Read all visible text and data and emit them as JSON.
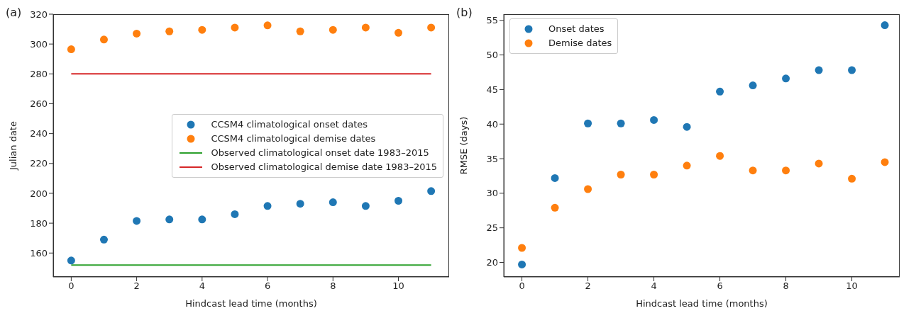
{
  "chart_data": [
    {
      "type": "scatter",
      "title": "(a)",
      "xlabel": "Hindcast lead time (months)",
      "ylabel": "Julian date",
      "xlim": [
        -0.55,
        11.55
      ],
      "xticks": [
        0,
        2,
        4,
        6,
        8,
        10
      ],
      "ylim": [
        144,
        320
      ],
      "yticks": [
        160,
        180,
        200,
        220,
        240,
        260,
        280,
        300,
        320
      ],
      "legend": "center right",
      "series": [
        {
          "name": "CCSM4 climatological onset dates",
          "marker": "circle",
          "color": "#1f77b4",
          "x": [
            0,
            1,
            2,
            3,
            4,
            5,
            6,
            7,
            8,
            9,
            10,
            11
          ],
          "values": [
            155,
            169,
            181.5,
            182.5,
            182.5,
            186,
            191.5,
            193,
            194,
            191.5,
            195,
            201.5
          ]
        },
        {
          "name": "CCSM4 climatological demise dates",
          "marker": "circle",
          "color": "#ff7f0e",
          "x": [
            0,
            1,
            2,
            3,
            4,
            5,
            6,
            7,
            8,
            9,
            10,
            11
          ],
          "values": [
            296.5,
            303,
            307,
            308.5,
            309.5,
            311,
            312.5,
            308.5,
            309.5,
            311,
            307.5,
            311
          ]
        },
        {
          "name": "Observed climatological onset date 1983–2015",
          "type": "line",
          "color": "#2ca02c",
          "x": [
            0,
            11
          ],
          "values": [
            152,
            152
          ]
        },
        {
          "name": "Observed climatological demise date 1983–2015",
          "type": "line",
          "color": "#d62728",
          "x": [
            0,
            11
          ],
          "values": [
            280,
            280
          ]
        }
      ]
    },
    {
      "type": "scatter",
      "title": "(b)",
      "xlabel": "Hindcast lead time (months)",
      "ylabel": "RMSE (days)",
      "xlim": [
        -0.55,
        11.45
      ],
      "xticks": [
        0,
        2,
        4,
        6,
        8,
        10
      ],
      "ylim": [
        17.9,
        55.9
      ],
      "yticks": [
        20,
        25,
        30,
        35,
        40,
        45,
        50,
        55
      ],
      "marker": "circle",
      "legend": "top left",
      "series": [
        {
          "name": "Onset dates",
          "color": "#1f77b4",
          "x": [
            0,
            1,
            2,
            3,
            4,
            5,
            6,
            7,
            8,
            9,
            10,
            11
          ],
          "values": [
            19.7,
            32.2,
            40.1,
            40.1,
            40.6,
            39.6,
            44.7,
            45.6,
            46.6,
            47.8,
            47.8,
            54.3
          ]
        },
        {
          "name": "Demise dates",
          "color": "#ff7f0e",
          "x": [
            0,
            1,
            2,
            3,
            4,
            5,
            6,
            7,
            8,
            9,
            10,
            11
          ],
          "values": [
            22.1,
            27.9,
            30.6,
            32.7,
            32.7,
            34.0,
            35.4,
            33.3,
            33.3,
            34.3,
            32.1,
            34.5
          ]
        }
      ]
    }
  ]
}
